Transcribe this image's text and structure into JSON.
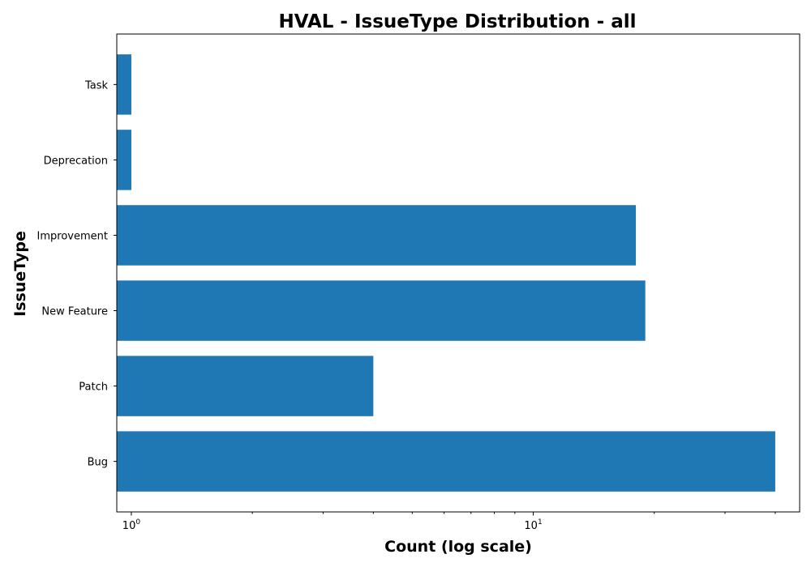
{
  "chart_data": {
    "type": "bar",
    "orientation": "horizontal",
    "title": "HVAL - IssueType Distribution - all",
    "xlabel": "Count (log scale)",
    "ylabel": "IssueType",
    "x_scale": "log",
    "xlim": [
      0.92,
      46
    ],
    "categories": [
      "Bug",
      "Patch",
      "New Feature",
      "Improvement",
      "Deprecation",
      "Task"
    ],
    "values": [
      40,
      4,
      19,
      18,
      1,
      1
    ],
    "x_ticks": [
      {
        "base": "10",
        "exp": "0",
        "value": 1
      },
      {
        "base": "10",
        "exp": "1",
        "value": 10
      }
    ],
    "bar_color": "#1f77b4",
    "grid": false
  }
}
